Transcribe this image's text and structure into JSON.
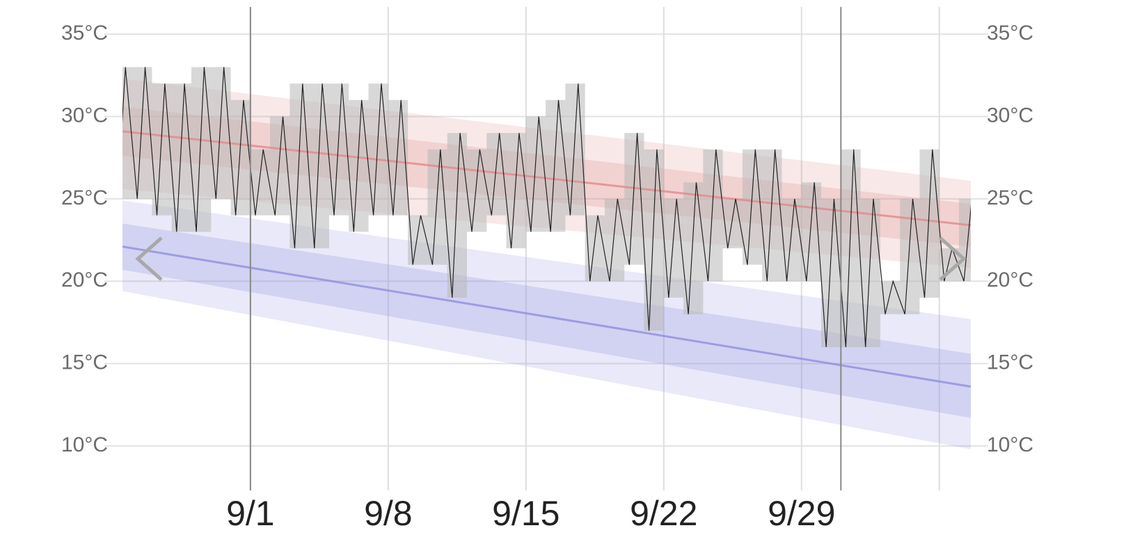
{
  "chart_data": {
    "type": "temperature-range",
    "xlim": [
      -5.5,
      37.6
    ],
    "xticks": [
      {
        "value": 1,
        "label": "9/1"
      },
      {
        "value": 8,
        "label": "9/8"
      },
      {
        "value": 15,
        "label": "9/15"
      },
      {
        "value": 22,
        "label": "9/22"
      },
      {
        "value": 29,
        "label": "9/29"
      },
      {
        "value": 36,
        "label": null
      }
    ],
    "month_lines": [
      1,
      31
    ],
    "ylim": [
      7.3,
      36.65
    ],
    "yticks": [
      {
        "value": 10,
        "label": "10°C"
      },
      {
        "value": 15,
        "label": "15°C"
      },
      {
        "value": 20,
        "label": "20°C"
      },
      {
        "value": 25,
        "label": "25°C"
      },
      {
        "value": 30,
        "label": "30°C"
      },
      {
        "value": 35,
        "label": "35°C"
      }
    ],
    "grid": true,
    "normals": [
      {
        "color": "#e08a8a",
        "x": [
          -5.5,
          37.6
        ],
        "mean": [
          29.1,
          23.4
        ],
        "inner_low": [
          27.6,
          22.1
        ],
        "inner_high": [
          30.6,
          24.7
        ],
        "outer_low": [
          25.6,
          20.8
        ],
        "outer_high": [
          32.3,
          26.1
        ]
      },
      {
        "color": "#8f8fe0",
        "x": [
          -5.5,
          37.6
        ],
        "mean": [
          22.1,
          13.6
        ],
        "inner_low": [
          20.7,
          11.7
        ],
        "inner_high": [
          23.5,
          15.6
        ],
        "outer_low": [
          19.4,
          9.8
        ],
        "outer_high": [
          24.9,
          17.7
        ]
      }
    ],
    "observed": {
      "color": "#222222",
      "range_color": "#b8b8b8",
      "days": [
        -6,
        -5,
        -4,
        -3,
        -2,
        -1,
        0,
        1,
        2,
        3,
        4,
        5,
        6,
        7,
        8,
        9,
        10,
        11,
        12,
        13,
        14,
        15,
        16,
        17,
        18,
        19,
        20,
        21,
        22,
        23,
        24,
        25,
        26,
        27,
        28,
        29,
        30,
        31,
        32,
        33,
        34,
        35,
        36,
        37
      ],
      "highs": [
        33,
        33,
        32,
        32,
        33,
        33,
        31,
        28,
        30,
        32,
        32,
        32,
        31,
        32,
        31,
        24,
        28,
        29,
        28,
        29,
        29,
        30,
        31,
        32,
        24,
        25,
        29,
        28,
        25,
        26,
        28,
        25,
        28,
        28,
        25,
        26,
        25,
        28,
        25,
        20,
        25,
        28,
        22,
        25
      ],
      "lows": [
        25,
        25,
        24,
        23,
        23,
        25,
        24,
        24,
        24,
        22,
        22,
        24,
        23,
        24,
        24,
        21,
        21,
        19,
        23,
        24,
        22,
        23,
        23,
        24,
        20,
        20,
        21,
        17,
        19,
        18,
        20,
        22,
        21,
        20,
        20,
        20,
        16,
        16,
        16,
        18,
        18,
        19,
        20,
        20
      ]
    }
  }
}
